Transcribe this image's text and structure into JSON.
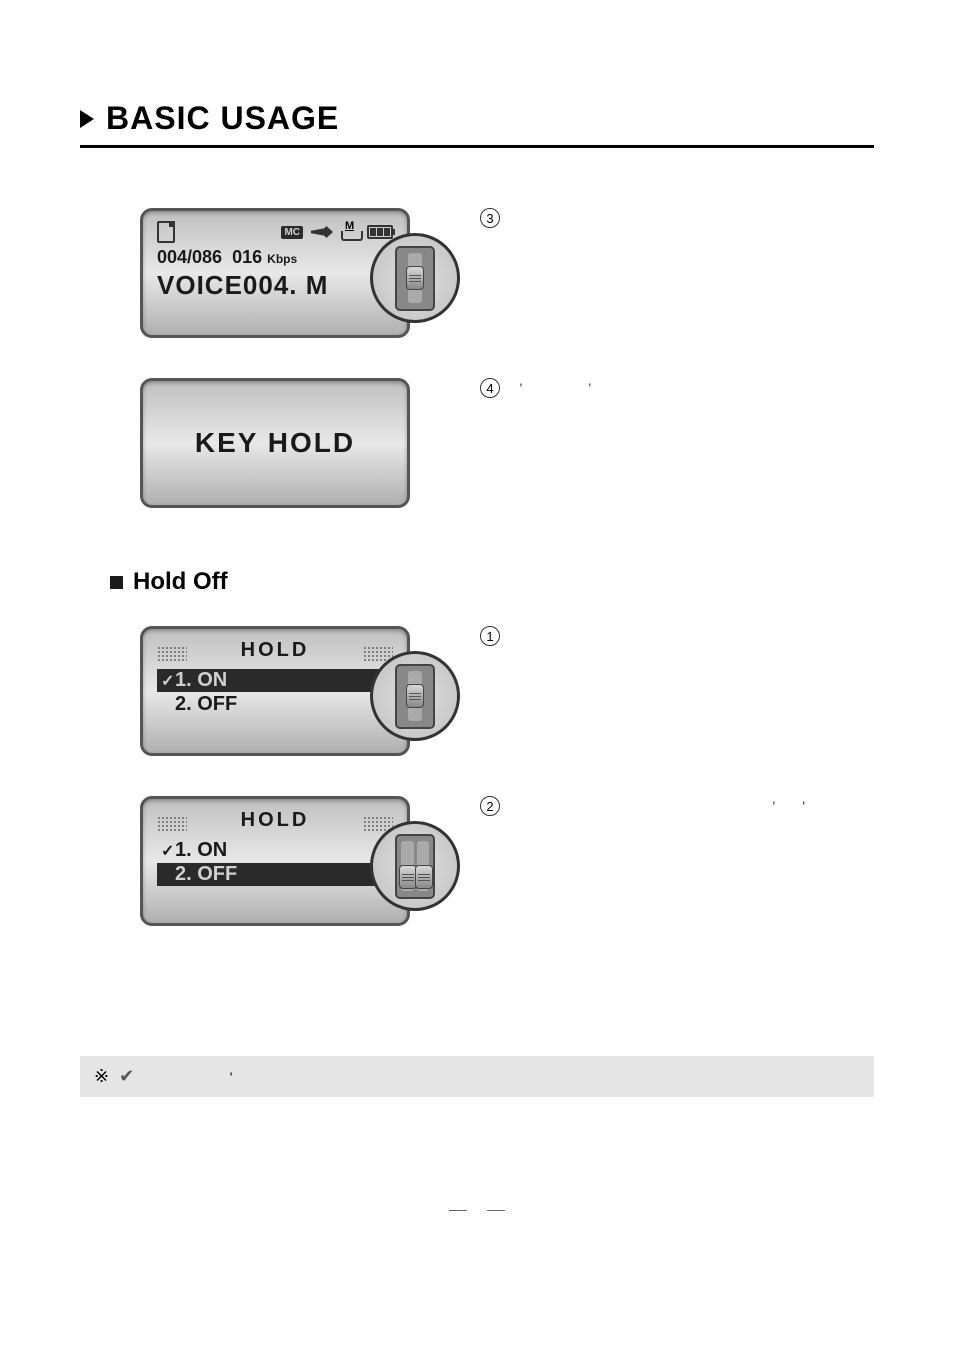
{
  "section": {
    "title": "BASIC USAGE"
  },
  "screen1": {
    "mc_label": "MC",
    "counter": "004/086",
    "bitrate": "016",
    "bitrate_unit": "Kbps",
    "filename": "VOICE004.  M"
  },
  "screen2": {
    "text": "KEY HOLD"
  },
  "subsection": {
    "title": "Hold Off"
  },
  "hold_screen": {
    "header": "HOLD",
    "option1_check": "✓",
    "option1": "1. ON",
    "option2": "2. OFF"
  },
  "steps": {
    "s3": "③",
    "s4": "④",
    "s4_quote_left": "'",
    "s4_quote_right": "'",
    "s1": "①",
    "s2": "②",
    "s2_quote_left": "'",
    "s2_quote_right": "'"
  },
  "note": {
    "symbol": "※",
    "check": "✔",
    "apostrophe": "'"
  },
  "page_num": ""
}
